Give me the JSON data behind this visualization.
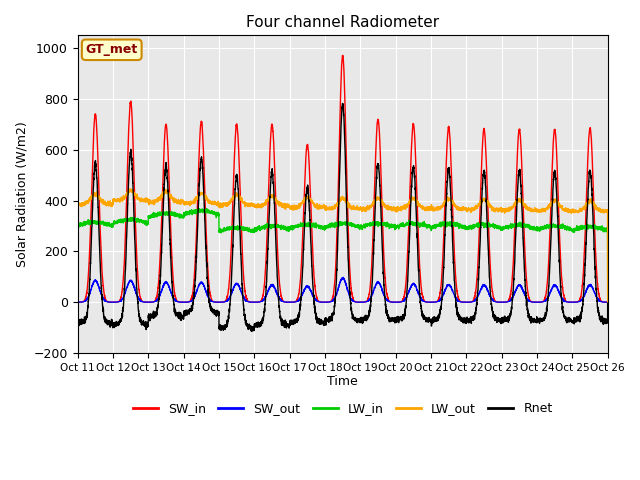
{
  "title": "Four channel Radiometer",
  "ylabel": "Solar Radiation (W/m2)",
  "xlabel": "Time",
  "ylim": [
    -200,
    1050
  ],
  "xlim": [
    0,
    15
  ],
  "x_tick_labels": [
    "Oct 11",
    "Oct 12",
    "Oct 13",
    "Oct 14",
    "Oct 15",
    "Oct 16",
    "Oct 17",
    "Oct 18",
    "Oct 19",
    "Oct 20",
    "Oct 21",
    "Oct 22",
    "Oct 23",
    "Oct 24",
    "Oct 25",
    "Oct 26"
  ],
  "station_label": "GT_met",
  "bg_color": "#e8e8e8",
  "fig_bg": "#ffffff",
  "series": {
    "SW_in": {
      "color": "#ff0000",
      "lw": 1.0
    },
    "SW_out": {
      "color": "#0000ff",
      "lw": 1.0
    },
    "LW_in": {
      "color": "#00cc00",
      "lw": 1.0
    },
    "LW_out": {
      "color": "#ffa500",
      "lw": 1.0
    },
    "Rnet": {
      "color": "#000000",
      "lw": 1.0
    }
  },
  "sw_in_peaks": [
    740,
    790,
    700,
    710,
    700,
    700,
    620,
    970,
    720,
    700,
    690,
    680,
    680,
    680,
    685
  ],
  "sw_out_peaks": [
    85,
    85,
    78,
    78,
    73,
    68,
    62,
    95,
    78,
    72,
    68,
    67,
    67,
    67,
    67
  ],
  "lw_in_base": [
    300,
    310,
    335,
    345,
    278,
    285,
    290,
    295,
    295,
    295,
    293,
    290,
    288,
    285,
    282
  ],
  "lw_out_base": [
    385,
    400,
    395,
    388,
    382,
    378,
    373,
    368,
    368,
    368,
    366,
    364,
    362,
    360,
    358
  ]
}
